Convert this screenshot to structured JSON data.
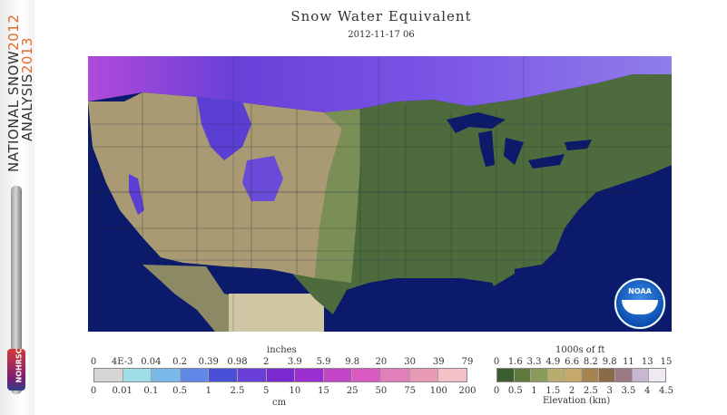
{
  "sidebar": {
    "line1": "NATIONAL SNOW",
    "line1_year": "2012",
    "line2": "ANALYSIS",
    "line2_year": "2013",
    "badge": "NOHRSC"
  },
  "header": {
    "title": "Snow Water Equivalent",
    "timestamp": "2012-11-17 06"
  },
  "map": {
    "logo": "NOAA",
    "colors": {
      "ocean": "#0c1a6b",
      "plains": "#4d6b3c",
      "west": "#a99a74",
      "snow_purple": "#6a40d8",
      "snow_magenta": "#b04ad9"
    }
  },
  "swe_legend": {
    "top_label": "inches",
    "bottom_label": "cm",
    "inches_ticks": [
      "0",
      "4E-3",
      "0.04",
      "0.2",
      "0.39",
      "0.98",
      "2",
      "3.9",
      "5.9",
      "9.8",
      "20",
      "30",
      "39",
      "79"
    ],
    "cm_ticks": [
      "0",
      "0.01",
      "0.1",
      "0.5",
      "1",
      "2.5",
      "5",
      "10",
      "15",
      "25",
      "50",
      "75",
      "100",
      "200"
    ],
    "colors": [
      "#d6d6d6",
      "#9fdde6",
      "#79b8e8",
      "#5f88e6",
      "#4a4fd8",
      "#6a3ed8",
      "#7a2ad0",
      "#9a2ed0",
      "#c445c8",
      "#d85ac0",
      "#e07fb8",
      "#e89ab4",
      "#f2c2c8"
    ]
  },
  "elevation_legend": {
    "top_label": "1000s of ft",
    "bottom_label": "Elevation (km)",
    "ft_ticks": [
      "0",
      "1.6",
      "3.3",
      "4.9",
      "6.6",
      "8.2",
      "9.8",
      "11",
      "13",
      "15"
    ],
    "km_ticks": [
      "0",
      "0.5",
      "1",
      "1.5",
      "2",
      "2.5",
      "3",
      "3.5",
      "4",
      "4.5"
    ],
    "colors": [
      "#3c5e2e",
      "#5e7a3c",
      "#8a9a58",
      "#b7ad6e",
      "#c8a86a",
      "#a78350",
      "#8b6a48",
      "#9b7a86",
      "#c7b7d0",
      "#efeaf2"
    ]
  }
}
